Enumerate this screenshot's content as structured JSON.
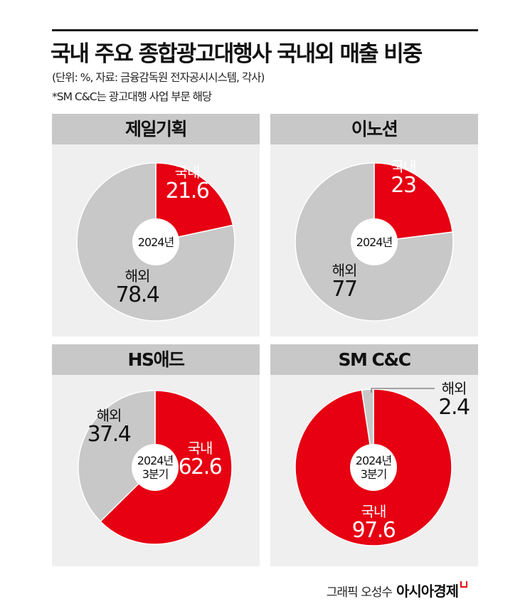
{
  "header": {
    "title": "국내 주요 종합광고대행사 국내외 매출 비중",
    "subtitle": "(단위: %, 자료: 금융감독원 전자공시시스템, 각사)",
    "note": "*SM C&C는 광고대행 사업 부문 해당"
  },
  "panels": [
    {
      "name": "제일기획",
      "period_line1": "2024년",
      "period_line2": "",
      "domestic_label": "국내",
      "domestic_value": "21.6",
      "overseas_label": "해외",
      "overseas_value": "78.4"
    },
    {
      "name": "이노션",
      "period_line1": "2024년",
      "period_line2": "",
      "domestic_label": "국내",
      "domestic_value": "23",
      "overseas_label": "해외",
      "overseas_value": "77"
    },
    {
      "name": "HS애드",
      "period_line1": "2024년",
      "period_line2": "3분기",
      "domestic_label": "국내",
      "domestic_value": "62.6",
      "overseas_label": "해외",
      "overseas_value": "37.4"
    },
    {
      "name": "SM C&C",
      "period_line1": "2024년",
      "period_line2": "3분기",
      "domestic_label": "국내",
      "domestic_value": "97.6",
      "overseas_label": "해외",
      "overseas_value": "2.4"
    }
  ],
  "footer": {
    "credit": "그래픽 오성수",
    "brand": "아시아경제"
  },
  "colors": {
    "domestic": "#e60012",
    "overseas": "#c8c8c8",
    "panel_bg": "#efefef",
    "panel_header": "#c8c8c8"
  },
  "chart_data": [
    {
      "type": "pie",
      "title": "제일기획",
      "subtitle": "2024년",
      "donut": true,
      "categories": [
        "국내",
        "해외"
      ],
      "values": [
        21.6,
        78.4
      ],
      "unit": "%"
    },
    {
      "type": "pie",
      "title": "이노션",
      "subtitle": "2024년",
      "donut": true,
      "categories": [
        "국내",
        "해외"
      ],
      "values": [
        23,
        77
      ],
      "unit": "%"
    },
    {
      "type": "pie",
      "title": "HS애드",
      "subtitle": "2024년 3분기",
      "donut": true,
      "categories": [
        "국내",
        "해외"
      ],
      "values": [
        62.6,
        37.4
      ],
      "unit": "%"
    },
    {
      "type": "pie",
      "title": "SM C&C",
      "subtitle": "2024년 3분기",
      "donut": true,
      "categories": [
        "국내",
        "해외"
      ],
      "values": [
        97.6,
        2.4
      ],
      "unit": "%"
    }
  ]
}
